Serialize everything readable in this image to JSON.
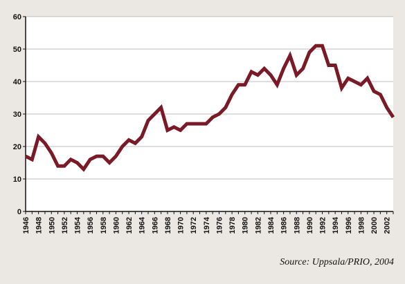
{
  "chart_data": {
    "type": "line",
    "x": [
      1946,
      1947,
      1948,
      1949,
      1950,
      1951,
      1952,
      1953,
      1954,
      1955,
      1956,
      1957,
      1958,
      1959,
      1960,
      1961,
      1962,
      1963,
      1964,
      1965,
      1966,
      1967,
      1968,
      1969,
      1970,
      1971,
      1972,
      1973,
      1974,
      1975,
      1976,
      1977,
      1978,
      1979,
      1980,
      1981,
      1982,
      1983,
      1984,
      1985,
      1986,
      1987,
      1988,
      1989,
      1990,
      1991,
      1992,
      1993,
      1994,
      1995,
      1996,
      1997,
      1998,
      1999,
      2000,
      2001,
      2002,
      2003
    ],
    "values": [
      17,
      16,
      23,
      21,
      18,
      14,
      14,
      16,
      15,
      13,
      16,
      17,
      17,
      15,
      17,
      20,
      22,
      21,
      23,
      28,
      30,
      32,
      25,
      26,
      25,
      27,
      27,
      27,
      27,
      29,
      30,
      32,
      36,
      39,
      39,
      43,
      42,
      44,
      42,
      39,
      44,
      48,
      42,
      44,
      49,
      51,
      51,
      45,
      45,
      38,
      41,
      40,
      39,
      41,
      37,
      36,
      32,
      29
    ],
    "x_tick_labels": [
      "1946",
      "1948",
      "1950",
      "1952",
      "1954",
      "1956",
      "1958",
      "1960",
      "1962",
      "1964",
      "1966",
      "1968",
      "1970",
      "1972",
      "1974",
      "1976",
      "1978",
      "1980",
      "1982",
      "1984",
      "1986",
      "1988",
      "1990",
      "1992",
      "1994",
      "1996",
      "1998",
      "2000",
      "2002"
    ],
    "y_ticks": [
      0,
      10,
      20,
      30,
      40,
      50,
      60
    ],
    "ylim": [
      0,
      60
    ],
    "xlim": [
      1946,
      2003
    ],
    "grid": "horizontal",
    "line_color": "#7b1a27",
    "source": "Source: Uppsala/PRIO, 2004"
  },
  "colors": {
    "background": "#ebe8e3",
    "plot_background": "#ffffff",
    "grid": "#bdbdbd"
  }
}
